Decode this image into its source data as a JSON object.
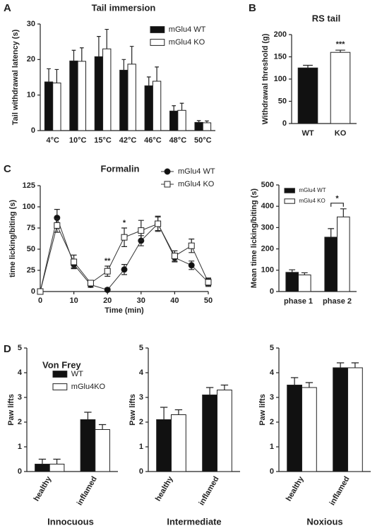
{
  "chart_data": [
    {
      "type": "bar",
      "panel_label": "A",
      "title": "Tail immersion",
      "ylabel": "Tail withdrawal latency (s)",
      "categories": [
        "4°C",
        "10°C",
        "15°C",
        "42°C",
        "46°C",
        "48°C",
        "50°C"
      ],
      "series": [
        {
          "name": "mGlu4 WT",
          "color": "#111111",
          "values": [
            13.7,
            19.6,
            20.8,
            17,
            12.6,
            5.5,
            2.3
          ],
          "errors": [
            3.7,
            3,
            5.7,
            3,
            2.5,
            1.5,
            0.5
          ]
        },
        {
          "name": "mGlu4 KO",
          "color": "#ffffff",
          "values": [
            13.4,
            19.5,
            23,
            18.7,
            13.9,
            5.7,
            2.2
          ],
          "errors": [
            3.8,
            3.8,
            5.5,
            5,
            4,
            2,
            0.5
          ]
        }
      ],
      "ylim": [
        0,
        30
      ],
      "yticks": [
        0,
        10,
        20,
        30
      ],
      "legend": "upper right"
    },
    {
      "type": "bar",
      "panel_label": "B",
      "title": "RS tail",
      "ylabel": "Withdrawal threshold (g)",
      "categories": [
        "WT",
        "KO"
      ],
      "values": [
        125,
        160
      ],
      "errors": [
        6,
        5
      ],
      "colors": [
        "#111111",
        "#ffffff"
      ],
      "ylim": [
        0,
        200
      ],
      "yticks": [
        0,
        50,
        100,
        150,
        200
      ],
      "annotations": [
        {
          "text": "***",
          "category": "KO"
        }
      ]
    },
    {
      "type": "line",
      "panel_label": "C",
      "title": "Formalin",
      "xlabel": "Time (min)",
      "ylabel": "time licking/biting (s)",
      "x": [
        0,
        5,
        10,
        15,
        20,
        25,
        30,
        35,
        40,
        45,
        50
      ],
      "series": [
        {
          "name": "mGlu4 WT",
          "color": "#111111",
          "marker": "circle",
          "values": [
            0,
            87,
            32,
            8,
            2,
            26,
            60,
            80,
            40,
            31,
            11
          ],
          "errors": [
            0,
            10,
            4,
            3,
            2,
            6,
            6,
            8,
            5,
            5,
            4
          ]
        },
        {
          "name": "mGlu4 KO",
          "color": "#ffffff",
          "marker": "square",
          "values": [
            0,
            78,
            35,
            10,
            24,
            64,
            72,
            80,
            42,
            54,
            11
          ],
          "errors": [
            0,
            8,
            8,
            3,
            6,
            11,
            12,
            9,
            6,
            8,
            5
          ]
        }
      ],
      "xlim": [
        0,
        50
      ],
      "xticks": [
        0,
        10,
        20,
        30,
        40,
        50
      ],
      "ylim": [
        0,
        125
      ],
      "yticks": [
        0,
        25,
        50,
        75,
        100,
        125
      ],
      "legend": "upper right",
      "annotations": [
        {
          "text": "**",
          "x": 20
        },
        {
          "text": "*",
          "x": 25
        }
      ]
    },
    {
      "type": "bar",
      "ylabel": "Mean time licking/biting (s)",
      "categories": [
        "phase 1",
        "phase 2"
      ],
      "series": [
        {
          "name": "mGlu4 WT",
          "color": "#111111",
          "values": [
            90,
            255
          ],
          "errors": [
            12,
            40
          ]
        },
        {
          "name": "mGlu4 KO",
          "color": "#ffffff",
          "values": [
            78,
            350
          ],
          "errors": [
            10,
            38
          ]
        }
      ],
      "ylim": [
        0,
        500
      ],
      "yticks": [
        0,
        100,
        200,
        300,
        400,
        500
      ],
      "legend": "upper left",
      "annotations": [
        {
          "text": "*",
          "category": "phase 2"
        }
      ]
    },
    {
      "type": "bar",
      "panel_label": "D",
      "group_title": "Von Frey",
      "title": "Innocuous",
      "ylabel": "Paw lifts",
      "categories": [
        "healthy",
        "inflamed"
      ],
      "series": [
        {
          "name": "WT",
          "color": "#111111",
          "values": [
            0.3,
            2.1
          ],
          "errors": [
            0.2,
            0.3
          ]
        },
        {
          "name": "mGlu4KO",
          "color": "#ffffff",
          "values": [
            0.3,
            1.7
          ],
          "errors": [
            0.2,
            0.2
          ]
        }
      ],
      "ylim": [
        0,
        5
      ],
      "yticks": [
        0,
        1,
        2,
        3,
        4,
        5
      ],
      "legend": "upper left"
    },
    {
      "type": "bar",
      "title": "Intermediate",
      "ylabel": "Paw lifts",
      "categories": [
        "healthy",
        "inflamed"
      ],
      "series": [
        {
          "color": "#111111",
          "values": [
            2.1,
            3.1
          ],
          "errors": [
            0.5,
            0.3
          ]
        },
        {
          "color": "#ffffff",
          "values": [
            2.3,
            3.3
          ],
          "errors": [
            0.2,
            0.2
          ]
        }
      ],
      "ylim": [
        0,
        5
      ],
      "yticks": [
        0,
        1,
        2,
        3,
        4,
        5
      ]
    },
    {
      "type": "bar",
      "title": "Noxious",
      "ylabel": "Paw lifts",
      "categories": [
        "healthy",
        "inflamed"
      ],
      "series": [
        {
          "color": "#111111",
          "values": [
            3.5,
            4.2
          ],
          "errors": [
            0.3,
            0.2
          ]
        },
        {
          "color": "#ffffff",
          "values": [
            3.4,
            4.2
          ],
          "errors": [
            0.2,
            0.2
          ]
        }
      ],
      "ylim": [
        0,
        5
      ],
      "yticks": [
        0,
        1,
        2,
        3,
        4,
        5
      ]
    }
  ]
}
